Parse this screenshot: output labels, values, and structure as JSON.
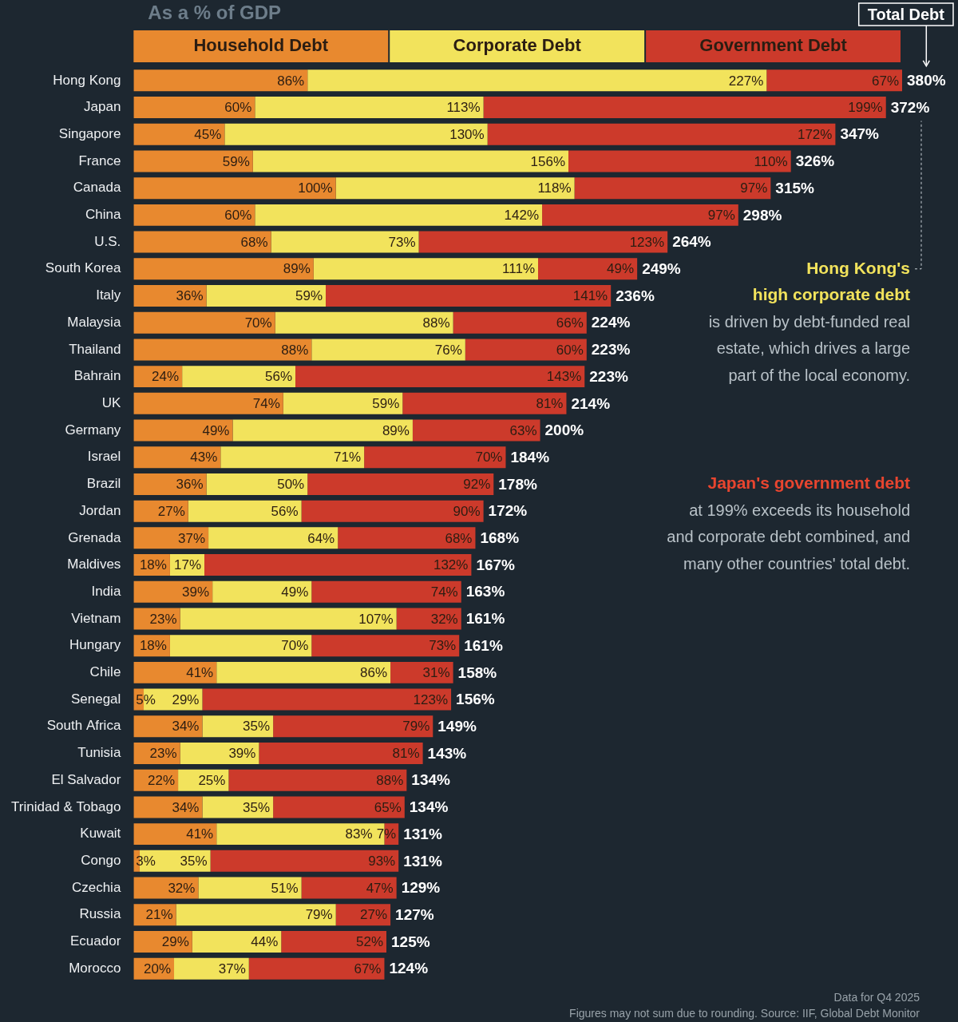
{
  "chart_data": {
    "type": "bar",
    "orientation": "horizontal",
    "stacked": true,
    "subtitle": "As a % of GDP",
    "categories": [
      "Hong Kong",
      "Japan",
      "Singapore",
      "France",
      "Canada",
      "China",
      "U.S.",
      "South Korea",
      "Italy",
      "Malaysia",
      "Thailand",
      "Bahrain",
      "UK",
      "Germany",
      "Israel",
      "Brazil",
      "Jordan",
      "Grenada",
      "Maldives",
      "India",
      "Vietnam",
      "Hungary",
      "Chile",
      "Senegal",
      "South Africa",
      "Tunisia",
      "El Salvador",
      "Trinidad & Tobago",
      "Kuwait",
      "Congo",
      "Czechia",
      "Russia",
      "Ecuador",
      "Morocco"
    ],
    "series": [
      {
        "name": "Household Debt",
        "color": "#e8892f",
        "values": [
          86,
          60,
          45,
          59,
          100,
          60,
          68,
          89,
          36,
          70,
          88,
          24,
          74,
          49,
          43,
          36,
          27,
          37,
          18,
          39,
          23,
          18,
          41,
          5,
          34,
          23,
          22,
          34,
          41,
          3,
          32,
          21,
          29,
          20
        ],
        "value_labels": [
          "86%",
          "60%",
          "45%",
          "59%",
          "100%",
          "60%",
          "68%",
          "89%",
          "36%",
          "70%",
          "88%",
          "24%",
          "74%",
          "49%",
          "43%",
          "36%",
          "27%",
          "37%",
          "18%",
          "39%",
          "23%",
          "18%",
          "41%",
          "5%",
          "34%",
          "23%",
          "22%",
          "34%",
          "41%",
          "3%",
          "32%",
          "21%",
          "29%",
          "20%"
        ]
      },
      {
        "name": "Corporate Debt",
        "color": "#f2e35c",
        "values": [
          227,
          113,
          130,
          156,
          118,
          142,
          73,
          111,
          59,
          88,
          76,
          56,
          59,
          89,
          71,
          50,
          56,
          64,
          17,
          49,
          107,
          70,
          86,
          29,
          35,
          39,
          25,
          35,
          83,
          35,
          51,
          79,
          44,
          37
        ],
        "value_labels": [
          "227%",
          "113%",
          "130%",
          "156%",
          "118%",
          "142%",
          "73%",
          "111%",
          "59%",
          "88%",
          "76%",
          "56%",
          "59%",
          "89%",
          "71%",
          "50%",
          "56%",
          "64%",
          "17%",
          "49%",
          "107%",
          "70%",
          "86%",
          "29%",
          "35%",
          "39%",
          "25%",
          "35%",
          "83%",
          "35%",
          "51%",
          "79%",
          "44%",
          "37%"
        ]
      },
      {
        "name": "Government Debt",
        "color": "#cc3a2b",
        "values": [
          67,
          199,
          172,
          110,
          97,
          97,
          123,
          49,
          141,
          66,
          60,
          143,
          81,
          63,
          70,
          92,
          90,
          68,
          132,
          74,
          32,
          73,
          31,
          123,
          79,
          81,
          88,
          65,
          7,
          93,
          47,
          27,
          52,
          67
        ],
        "value_labels": [
          "67%",
          "199%",
          "172%",
          "110%",
          "97%",
          "97%",
          "123%",
          "49%",
          "141%",
          "66%",
          "60%",
          "143%",
          "81%",
          "63%",
          "70%",
          "92%",
          "90%",
          "68%",
          "132%",
          "74%",
          "32%",
          "73%",
          "31%",
          "123%",
          "79%",
          "81%",
          "88%",
          "65%",
          "7%",
          "93%",
          "47%",
          "27%",
          "52%",
          "67%"
        ]
      }
    ],
    "totals": {
      "title": "Total Debt",
      "values": [
        380,
        372,
        347,
        326,
        315,
        298,
        264,
        249,
        236,
        224,
        223,
        223,
        214,
        200,
        184,
        178,
        172,
        168,
        167,
        163,
        161,
        161,
        158,
        156,
        149,
        143,
        134,
        134,
        131,
        131,
        129,
        127,
        125,
        124
      ],
      "value_labels": [
        "380%",
        "372%",
        "347%",
        "326%",
        "315%",
        "298%",
        "264%",
        "249%",
        "236%",
        "224%",
        "223%",
        "223%",
        "214%",
        "200%",
        "184%",
        "178%",
        "172%",
        "168%",
        "167%",
        "163%",
        "161%",
        "161%",
        "158%",
        "156%",
        "149%",
        "143%",
        "134%",
        "134%",
        "131%",
        "131%",
        "129%",
        "127%",
        "125%",
        "124%"
      ]
    },
    "xlim": [
      0,
      380
    ],
    "grid": false,
    "tick_labels": "y",
    "legend": "top",
    "data_labels": true,
    "annotations": [
      {
        "highlight_lines": [
          "Hong Kong's",
          "high corporate debt"
        ],
        "color": "#f2e35c",
        "lines": [
          "is driven by debt-funded real",
          "estate, which drives a large",
          "part of the local economy."
        ]
      },
      {
        "highlight_lines": [
          "Japan's government debt"
        ],
        "color": "#e8452f",
        "lines": [
          "at 199% exceeds its household",
          "and corporate debt combined, and",
          "many other countries' total debt."
        ]
      }
    ],
    "notes": [
      "Data for Q4 2025",
      "Figures may not sum due to rounding. Source: IIF, Global Debt Monitor"
    ]
  }
}
